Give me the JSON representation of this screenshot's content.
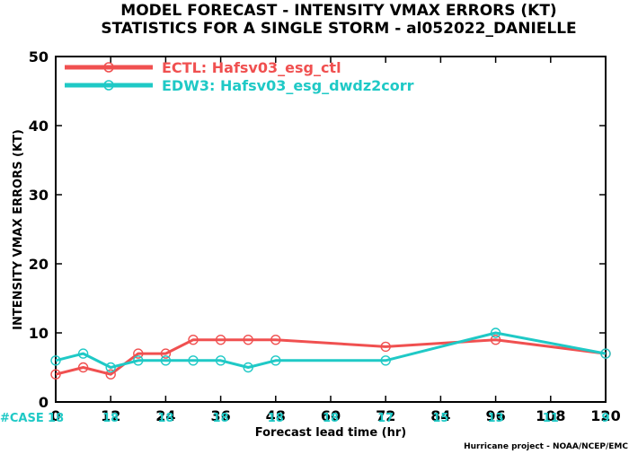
{
  "chart_data": {
    "type": "line",
    "title": "MODEL FORECAST - INTENSITY VMAX ERRORS (KT)",
    "subtitle": "STATISTICS FOR A SINGLE STORM - al052022_DANIELLE",
    "xlabel": "Forecast lead time (hr)",
    "ylabel": "INTENSITY VMAX ERRORS (KT)",
    "xlim": [
      0,
      120
    ],
    "ylim": [
      0,
      50
    ],
    "x_ticks": [
      0,
      12,
      24,
      36,
      48,
      60,
      72,
      84,
      96,
      108,
      120
    ],
    "y_ticks": [
      0,
      10,
      20,
      30,
      40,
      50
    ],
    "grid": false,
    "legend_position": "top-left",
    "series": [
      {
        "name": "ECTL: Hafsv03_esg_ctl",
        "color": "#f05050",
        "points": [
          [
            0,
            4
          ],
          [
            6,
            5
          ],
          [
            12,
            4
          ],
          [
            18,
            7
          ],
          [
            24,
            7
          ],
          [
            30,
            9
          ],
          [
            36,
            9
          ],
          [
            42,
            9
          ],
          [
            48,
            9
          ],
          [
            72,
            8
          ],
          [
            96,
            9
          ],
          [
            120,
            7
          ]
        ]
      },
      {
        "name": "EDW3: Hafsv03_esg_dwdz2corr",
        "color": "#1fc9c6",
        "points": [
          [
            0,
            6
          ],
          [
            6,
            7
          ],
          [
            12,
            5
          ],
          [
            18,
            6
          ],
          [
            24,
            6
          ],
          [
            30,
            6
          ],
          [
            36,
            6
          ],
          [
            42,
            5
          ],
          [
            48,
            6
          ],
          [
            72,
            6
          ],
          [
            96,
            10
          ],
          [
            120,
            7
          ]
        ]
      }
    ],
    "case_label": "#CASE",
    "case_counts": [
      {
        "x": 0,
        "count": "18"
      },
      {
        "x": 12,
        "count": "18"
      },
      {
        "x": 24,
        "count": "18"
      },
      {
        "x": 36,
        "count": "18"
      },
      {
        "x": 48,
        "count": "18"
      },
      {
        "x": 60,
        "count": "18"
      },
      {
        "x": 72,
        "count": "17"
      },
      {
        "x": 84,
        "count": "15"
      },
      {
        "x": 96,
        "count": "13"
      },
      {
        "x": 108,
        "count": "11"
      },
      {
        "x": 120,
        "count": "9"
      }
    ],
    "credit": "Hurricane project - NOAA/NCEP/EMC"
  }
}
